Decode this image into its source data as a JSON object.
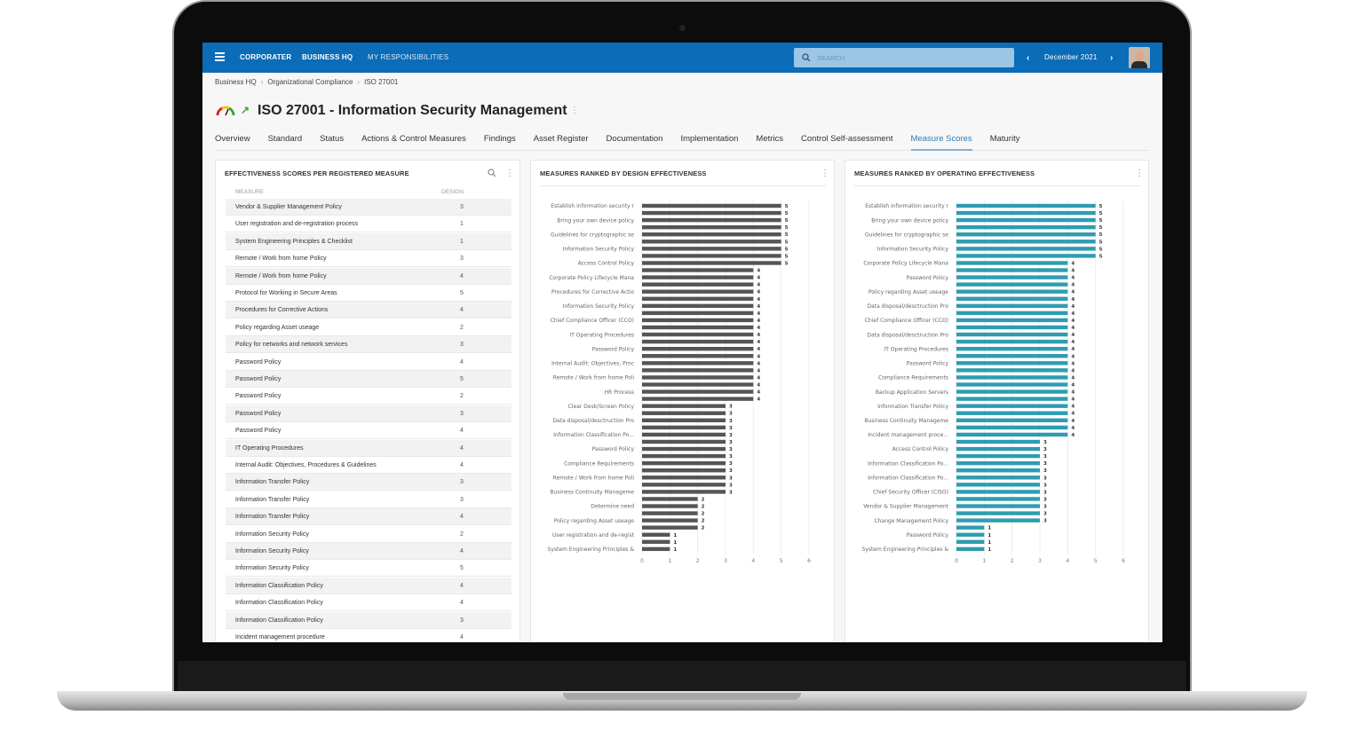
{
  "header": {
    "menu_icon": "hamburger-icon",
    "logo": "CORPORATER",
    "nav": [
      "BUSINESS HQ",
      "MY RESPONSIBILITIES"
    ],
    "search_placeholder": "SEARCH",
    "period": "December 2021",
    "brand_color": "#0b6cb7"
  },
  "breadcrumb": [
    "Business HQ",
    "Organizational Compliance",
    "ISO 27001"
  ],
  "page": {
    "title": "ISO 27001 - Information Security Management",
    "status_icons": [
      "gauge-icon",
      "trend-up-arrow-icon"
    ]
  },
  "tabs": [
    {
      "label": "Overview"
    },
    {
      "label": "Standard"
    },
    {
      "label": "Status"
    },
    {
      "label": "Actions & Control Measures"
    },
    {
      "label": "Findings"
    },
    {
      "label": "Asset Register"
    },
    {
      "label": "Documentation"
    },
    {
      "label": "Implementation"
    },
    {
      "label": "Metrics"
    },
    {
      "label": "Control Self-assessment"
    },
    {
      "label": "Measure Scores",
      "active": true
    },
    {
      "label": "Maturity"
    }
  ],
  "table_panel": {
    "title": "EFFECTIVENESS SCORES PER REGISTERED MEASURE",
    "columns": [
      "MEASURE",
      "DESIGN"
    ],
    "rows": [
      [
        "Vendor & Supplier Management Policy",
        "3"
      ],
      [
        "User registration and de-registration process",
        "1"
      ],
      [
        "System Engineering Principles & Checklist",
        "1"
      ],
      [
        "Remote / Work from home Policy",
        "3"
      ],
      [
        "Remote / Work from home Policy",
        "4"
      ],
      [
        "Protocol for Working in Secure Areas",
        "5"
      ],
      [
        "Procedures for Corrective Actions",
        "4"
      ],
      [
        "Policy regarding Asset useage",
        "2"
      ],
      [
        "Policy for networks and network services",
        "3"
      ],
      [
        "Password Policy",
        "4"
      ],
      [
        "Password Policy",
        "5"
      ],
      [
        "Password Policy",
        "2"
      ],
      [
        "Password Policy",
        "3"
      ],
      [
        "Password Policy",
        "4"
      ],
      [
        "IT Operating Procedures",
        "4"
      ],
      [
        "Internal Audit: Objectives, Procedures & Guidelines",
        "4"
      ],
      [
        "Information Transfer Policy",
        "3"
      ],
      [
        "Information Transfer Policy",
        "3"
      ],
      [
        "Information Transfer Policy",
        "4"
      ],
      [
        "Information Security Policy",
        "2"
      ],
      [
        "Information Security Policy",
        "4"
      ],
      [
        "Information Security Policy",
        "5"
      ],
      [
        "Information Classification Policy",
        "4"
      ],
      [
        "Information Classification Policy",
        "4"
      ],
      [
        "Information Classification Policy",
        "3"
      ],
      [
        "Incident management procedure",
        "4"
      ]
    ]
  },
  "chart_data": [
    {
      "type": "bar",
      "orientation": "horizontal",
      "title": "MEASURES RANKED BY DESIGN EFFECTIVENESS",
      "color": "#555555",
      "xlim": [
        0,
        6
      ],
      "xticks": [
        0,
        1,
        2,
        3,
        4,
        5,
        6
      ],
      "grid": true,
      "categories": [
        "Establish information security r",
        "",
        "Bring your own device policy",
        "",
        "Guidelines for cryptographic se",
        "",
        "Information Security Policy",
        "",
        "Access Control Policy",
        "",
        "Corporate Policy Lifecycle Mana",
        "",
        "Procedures for Corrective Actio",
        "",
        "Information Security Policy",
        "",
        "Chief Compliance Officer (CCO)",
        "",
        "IT Operating Procedures",
        "",
        "Password Policy",
        "",
        "Internal Audit: Objectives, Proc",
        "",
        "Remote / Work from home Poli",
        "",
        "HR Process",
        "",
        "Clear Desk/Screen Policy",
        "",
        "Data disposal/desctruction Pro",
        "",
        "Information Classification Po...",
        "",
        "Password Policy",
        "",
        "Compliance Requirements",
        "",
        "Remote / Work from home Poli",
        "",
        "Business Continuity Manageme",
        "",
        "Determine need",
        "",
        "Policy regarding Asset useage",
        "",
        "User registration and de-regist",
        "",
        "System Engineering Principles &"
      ],
      "values": [
        5,
        5,
        5,
        5,
        5,
        5,
        5,
        5,
        5,
        4,
        4,
        4,
        4,
        4,
        4,
        4,
        4,
        4,
        4,
        4,
        4,
        4,
        4,
        4,
        4,
        4,
        4,
        4,
        3,
        3,
        3,
        3,
        3,
        3,
        3,
        3,
        3,
        3,
        3,
        3,
        3,
        2,
        2,
        2,
        2,
        2,
        1,
        1,
        1
      ]
    },
    {
      "type": "bar",
      "orientation": "horizontal",
      "title": "MEASURES RANKED BY OPERATING EFFECTIVENESS",
      "color": "#2f9cb0",
      "xlim": [
        0,
        6
      ],
      "xticks": [
        0,
        1,
        2,
        3,
        4,
        5,
        6
      ],
      "grid": true,
      "categories": [
        "Establish information security r",
        "",
        "Bring your own device policy",
        "",
        "Guidelines for cryptographic se",
        "",
        "Information Security Policy",
        "",
        "Corporate Policy Lifecycle Mana",
        "",
        "Password Policy",
        "",
        "Policy regarding Asset useage",
        "",
        "Data disposal/desctruction Pro",
        "",
        "Chief Compliance Officer (CCO)",
        "",
        "Data disposal/desctruction Pro",
        "",
        "IT Operating Procedures",
        "",
        "Password Policy",
        "",
        "Compliance Requirements",
        "",
        "Backup Application Servers",
        "",
        "Information Transfer Policy",
        "",
        "Business Continuity Manageme",
        "",
        "Incident management proce...",
        "",
        "Access Control Policy",
        "",
        "Information Classification Po...",
        "",
        "Information Classification Po...",
        "",
        "Chief Security Officer (CISO)",
        "",
        "Vendor & Supplier Management",
        "",
        "Change Management Policy",
        "",
        "Password Policy",
        "",
        "System Engineering Principles &"
      ],
      "values": [
        5,
        5,
        5,
        5,
        5,
        5,
        5,
        5,
        4,
        4,
        4,
        4,
        4,
        4,
        4,
        4,
        4,
        4,
        4,
        4,
        4,
        4,
        4,
        4,
        4,
        4,
        4,
        4,
        4,
        4,
        4,
        4,
        4,
        3,
        3,
        3,
        3,
        3,
        3,
        3,
        3,
        3,
        3,
        3,
        3,
        1,
        1,
        1,
        1
      ]
    }
  ]
}
